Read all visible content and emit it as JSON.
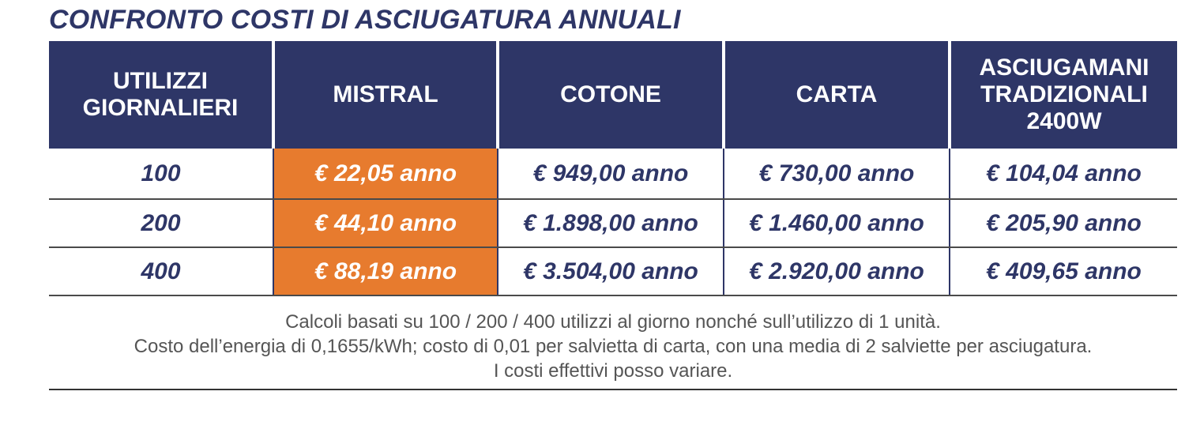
{
  "title": "CONFRONTO COSTI DI ASCIUGATURA ANNUALI",
  "colors": {
    "header_bg": "#2e3667",
    "highlight_bg": "#e77b2e",
    "text_dark": "#2e3667"
  },
  "table": {
    "headers": [
      "UTILIZZI GIORNALIERI",
      "MISTRAL",
      "COTONE",
      "CARTA",
      "ASCIUGAMANI TRADIZIONALI 2400W"
    ],
    "rows": [
      [
        "100",
        "€ 22,05 anno",
        "€ 949,00 anno",
        "€ 730,00 anno",
        "€ 104,04 anno"
      ],
      [
        "200",
        "€ 44,10 anno",
        "€ 1.898,00 anno",
        "€ 1.460,00 anno",
        "€ 205,90 anno"
      ],
      [
        "400",
        "€ 88,19 anno",
        "€ 3.504,00 anno",
        "€ 2.920,00 anno",
        "€ 409,65 anno"
      ]
    ]
  },
  "notes": [
    "Calcoli basati su 100 / 200 / 400 utilizzi al giorno nonché sull’utilizzo di 1 unità.",
    "Costo dell’energia di 0,1655/kWh; costo di 0,01 per salvietta di carta, con una media di 2 salviette per asciugatura.",
    "I costi effettivi posso variare."
  ]
}
